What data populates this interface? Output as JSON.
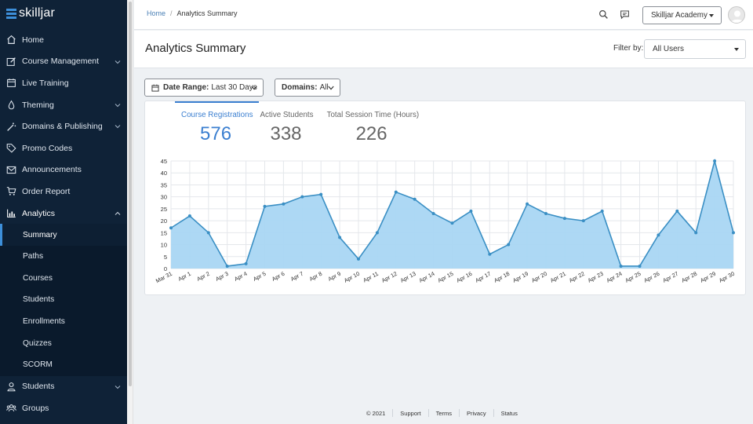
{
  "brand": {
    "name": "skilljar"
  },
  "sidebar": {
    "items": [
      {
        "label": "Home",
        "icon": "home-icon"
      },
      {
        "label": "Course Management",
        "icon": "edit-icon",
        "expandable": true
      },
      {
        "label": "Live Training",
        "icon": "calendar-icon"
      },
      {
        "label": "Theming",
        "icon": "droplet-icon",
        "expandable": true
      },
      {
        "label": "Domains & Publishing",
        "icon": "wand-icon",
        "expandable": true
      },
      {
        "label": "Promo Codes",
        "icon": "tag-icon"
      },
      {
        "label": "Announcements",
        "icon": "mail-icon"
      },
      {
        "label": "Order Report",
        "icon": "cart-icon"
      },
      {
        "label": "Analytics",
        "icon": "bar-chart-icon",
        "expanded": true
      }
    ],
    "analytics_sub": [
      "Summary",
      "Paths",
      "Courses",
      "Students",
      "Enrollments",
      "Quizzes",
      "SCORM"
    ],
    "after": [
      {
        "label": "Students",
        "icon": "user-icon",
        "expandable": true
      },
      {
        "label": "Groups",
        "icon": "users-icon"
      }
    ]
  },
  "topbar": {
    "breadcrumb_home": "Home",
    "breadcrumb_sep": "/",
    "breadcrumb_current": "Analytics Summary",
    "account": "Skilljar Academy"
  },
  "page": {
    "title": "Analytics Summary",
    "filter_label": "Filter by:",
    "filter_value": "All Users"
  },
  "filters": {
    "date_label": "Date Range:",
    "date_value": "Last 30 Days",
    "domains_label": "Domains:",
    "domains_value": "All"
  },
  "tabs": [
    {
      "label": "Course Registrations",
      "value": "576"
    },
    {
      "label": "Active Students",
      "value": "338"
    },
    {
      "label": "Total Session Time (Hours)",
      "value": "226"
    }
  ],
  "colors": {
    "accent": "#3b7fd0",
    "line": "#3a8fc4",
    "area": "#a9d6f3",
    "sidebar": "#0f2237"
  },
  "chart_data": {
    "type": "area",
    "x": [
      "Mar 31",
      "Apr 1",
      "Apr 2",
      "Apr 3",
      "Apr 4",
      "Apr 5",
      "Apr 6",
      "Apr 7",
      "Apr 8",
      "Apr 9",
      "Apr 10",
      "Apr 11",
      "Apr 12",
      "Apr 13",
      "Apr 14",
      "Apr 15",
      "Apr 16",
      "Apr 17",
      "Apr 18",
      "Apr 19",
      "Apr 20",
      "Apr 21",
      "Apr 22",
      "Apr 23",
      "Apr 24",
      "Apr 25",
      "Apr 26",
      "Apr 27",
      "Apr 28",
      "Apr 29",
      "Apr 30"
    ],
    "series": [
      {
        "values": [
          17,
          22,
          15,
          1,
          2,
          26,
          27,
          30,
          31,
          13,
          4,
          15,
          32,
          29,
          23,
          19,
          24,
          6,
          10,
          27,
          23,
          21,
          20,
          24,
          1,
          1,
          14,
          24,
          15,
          45,
          15
        ]
      }
    ],
    "yticks": [
      0,
      5,
      10,
      15,
      20,
      25,
      30,
      35,
      40,
      45
    ],
    "ylim": [
      0,
      45
    ],
    "grid": true
  },
  "footer": {
    "copyright": "© 2021",
    "links": [
      "Support",
      "Terms",
      "Privacy",
      "Status"
    ]
  }
}
